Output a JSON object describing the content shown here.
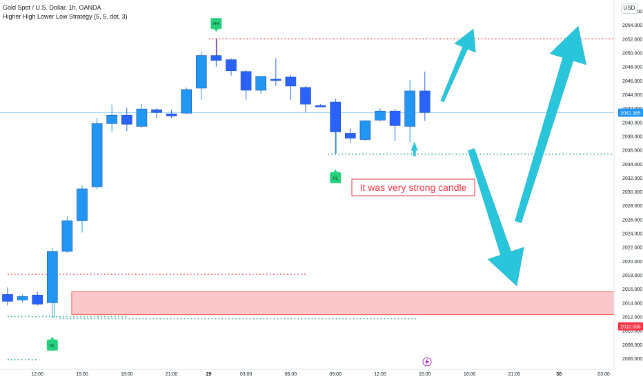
{
  "header": {
    "title": "Gold Spot / U.S. Dollar, 1h, OANDA",
    "indicator": "Higher High Lower Low Strategy (5, 5, dot, 3)",
    "currency": "USD"
  },
  "colors": {
    "up": "#2196f3",
    "down": "#2962ff",
    "wick": "#546e7a",
    "red_dotted": "#f44336",
    "green_dotted": "#26a69a",
    "zone_fill": "#f8b4b8",
    "zone_border": "#f44336",
    "arrow": "#29c5db",
    "pivot_label": "#26d07c",
    "annotation_border": "#f23645",
    "annotation_text": "#f23645",
    "price_line": "#90caf9"
  },
  "chart_data": {
    "type": "candlestick",
    "ylim": [
      2005,
      2057
    ],
    "y_ticks": [
      2006,
      2008,
      2010,
      2012,
      2014,
      2016,
      2018,
      2020,
      2022,
      2024,
      2026,
      2028,
      2030,
      2032,
      2034,
      2036,
      2038,
      2040,
      2042,
      2044,
      2046,
      2048,
      2050,
      2052,
      2054,
      2056
    ],
    "x_ticks": [
      "12:00",
      "15:00",
      "18:00",
      "21:00",
      "29",
      "03:00",
      "06:00",
      "09:00",
      "12:00",
      "15:00",
      "18:00",
      "21:00",
      "30",
      "03:00"
    ],
    "x_tick_bar_index": [
      2,
      5,
      8,
      11,
      13.5,
      16,
      19,
      22,
      25,
      28,
      31,
      34,
      37,
      40
    ],
    "candles": [
      {
        "o": 2015.2,
        "h": 2016.2,
        "l": 2013.6,
        "c": 2014.2
      },
      {
        "o": 2014.4,
        "h": 2015.2,
        "l": 2014.0,
        "c": 2014.9
      },
      {
        "o": 2015.1,
        "h": 2015.6,
        "l": 2013.6,
        "c": 2013.8
      },
      {
        "o": 2014.0,
        "h": 2021.9,
        "l": 2011.8,
        "c": 2021.4
      },
      {
        "o": 2021.4,
        "h": 2026.4,
        "l": 2021.2,
        "c": 2025.8
      },
      {
        "o": 2025.8,
        "h": 2030.9,
        "l": 2024.1,
        "c": 2030.4
      },
      {
        "o": 2030.7,
        "h": 2040.6,
        "l": 2030.3,
        "c": 2039.8
      },
      {
        "o": 2039.8,
        "h": 2042.5,
        "l": 2038.6,
        "c": 2041.0
      },
      {
        "o": 2041.0,
        "h": 2042.1,
        "l": 2038.7,
        "c": 2039.7
      },
      {
        "o": 2039.4,
        "h": 2042.6,
        "l": 2039.2,
        "c": 2041.9
      },
      {
        "o": 2041.8,
        "h": 2042.0,
        "l": 2040.6,
        "c": 2041.4
      },
      {
        "o": 2041.2,
        "h": 2041.8,
        "l": 2040.6,
        "c": 2040.9
      },
      {
        "o": 2041.3,
        "h": 2045.0,
        "l": 2041.2,
        "c": 2044.7
      },
      {
        "o": 2044.9,
        "h": 2050.2,
        "l": 2043.2,
        "c": 2049.6
      },
      {
        "o": 2049.6,
        "h": 2052.0,
        "l": 2048.0,
        "c": 2048.9
      },
      {
        "o": 2049.0,
        "h": 2049.2,
        "l": 2046.7,
        "c": 2047.4
      },
      {
        "o": 2047.3,
        "h": 2047.5,
        "l": 2043.2,
        "c": 2044.6
      },
      {
        "o": 2044.6,
        "h": 2046.5,
        "l": 2044.1,
        "c": 2046.6
      },
      {
        "o": 2046.2,
        "h": 2049.2,
        "l": 2045.2,
        "c": 2046.0
      },
      {
        "o": 2046.5,
        "h": 2046.8,
        "l": 2043.2,
        "c": 2045.2
      },
      {
        "o": 2045.0,
        "h": 2045.2,
        "l": 2041.4,
        "c": 2042.6
      },
      {
        "o": 2042.4,
        "h": 2042.6,
        "l": 2042.2,
        "c": 2042.2
      },
      {
        "o": 2042.9,
        "h": 2043.4,
        "l": 2035.5,
        "c": 2038.6
      },
      {
        "o": 2038.4,
        "h": 2039.1,
        "l": 2037.0,
        "c": 2037.7
      },
      {
        "o": 2037.5,
        "h": 2040.3,
        "l": 2037.3,
        "c": 2040.2
      },
      {
        "o": 2040.3,
        "h": 2042.0,
        "l": 2040.1,
        "c": 2041.6
      },
      {
        "o": 2041.6,
        "h": 2041.9,
        "l": 2037.3,
        "c": 2039.5
      },
      {
        "o": 2039.4,
        "h": 2046.1,
        "l": 2037.1,
        "c": 2044.5
      },
      {
        "o": 2044.5,
        "h": 2047.3,
        "l": 2040.2,
        "c": 2041.4
      }
    ],
    "levels": [
      {
        "color": "red",
        "price": 2052.0,
        "from_bar": 13.5,
        "to_bar": 42.5
      },
      {
        "color": "green",
        "price": 2035.4,
        "from_bar": 21.5,
        "to_bar": 42.5
      },
      {
        "color": "red",
        "price": 2018.1,
        "from_bar": 0,
        "to_bar": 20
      },
      {
        "color": "green",
        "price": 2012.0,
        "from_bar": 0,
        "to_bar": 8
      },
      {
        "color": "green",
        "price": 2011.7,
        "from_bar": 3.5,
        "to_bar": 27.5
      },
      {
        "color": "green",
        "price": 2005.8,
        "from_bar": 0,
        "to_bar": 2
      }
    ],
    "zone": {
      "from_bar": 4.3,
      "to_bar": 42,
      "top": 2015.6,
      "bottom": 2012.3
    },
    "pivot_labels": [
      {
        "text": "HH",
        "bar": 14
      },
      {
        "text": "HL",
        "bar": 22
      },
      {
        "text": "HL",
        "bar": 3
      }
    ],
    "annotation": "It was very strong candle",
    "price_tags": [
      {
        "value": "2041.365",
        "price": 2041.365,
        "bg": "#2196f3"
      },
      {
        "value": "2010.595",
        "price": 2010.595,
        "bg": "#f23645"
      }
    ],
    "current_price": 2041.365
  }
}
